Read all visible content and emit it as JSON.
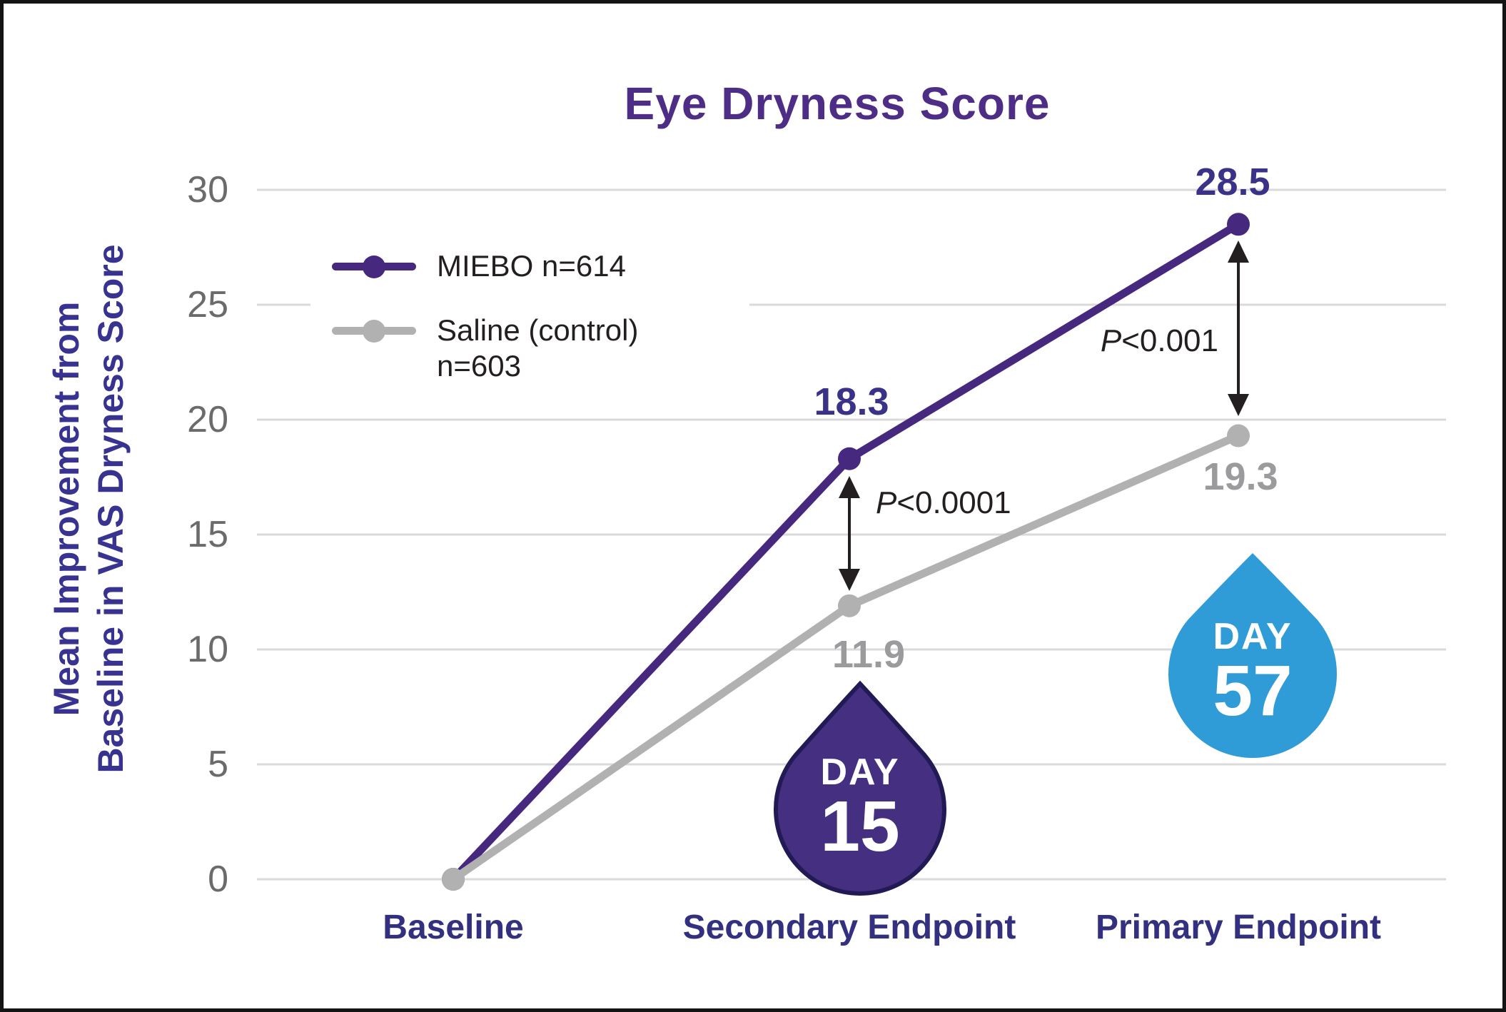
{
  "chart_data": {
    "type": "line",
    "title": "Eye Dryness Score",
    "y_axis": {
      "label_lines": [
        "Mean Improvement from",
        "Baseline in VAS Dryness Score"
      ],
      "ticks": [
        0,
        5,
        10,
        15,
        20,
        25,
        30
      ],
      "range": [
        0,
        30
      ],
      "grid": true
    },
    "x_axis": {
      "categories": [
        "Baseline",
        "Secondary Endpoint",
        "Primary Endpoint"
      ]
    },
    "legend": {
      "position": "top-left",
      "items": [
        {
          "label_lines": [
            "MIEBO n=614"
          ],
          "color": "#46287E"
        },
        {
          "label_lines": [
            "Saline (control)",
            "n=603"
          ],
          "color": "#B1B1B2"
        }
      ]
    },
    "series": [
      {
        "name": "MIEBO n=614",
        "color": "#46287E",
        "values": [
          0,
          18.3,
          28.5
        ],
        "point_labels": [
          "",
          "18.3",
          "28.5"
        ],
        "label_color": "#3A3189"
      },
      {
        "name": "Saline (control) n=603",
        "color": "#B1B1B2",
        "values": [
          0,
          11.9,
          19.3
        ],
        "point_labels": [
          "",
          "11.9",
          "19.3"
        ],
        "label_color": "#9B9B9D"
      }
    ],
    "annotations": [
      {
        "text": "P<0.0001",
        "at": "Secondary Endpoint"
      },
      {
        "text": "P<0.001",
        "at": "Primary Endpoint"
      }
    ],
    "day_markers": [
      {
        "line1": "DAY",
        "line2": "15",
        "fill": "#452F80",
        "outline": "#211A55",
        "text_color": "#FFFFFF",
        "at": "Secondary Endpoint"
      },
      {
        "line1": "DAY",
        "line2": "57",
        "fill": "#2F9CD8",
        "outline": null,
        "text_color": "#FFFFFF",
        "at": "Primary Endpoint"
      }
    ],
    "colors": {
      "title": "#4E2D87",
      "axis_category_text": "#33307F",
      "y_axis_title_text": "#383390",
      "tick_text": "#6B6B6E",
      "gridline": "#DADADA",
      "annotation_text": "#231F20",
      "arrow": "#231F20"
    }
  }
}
